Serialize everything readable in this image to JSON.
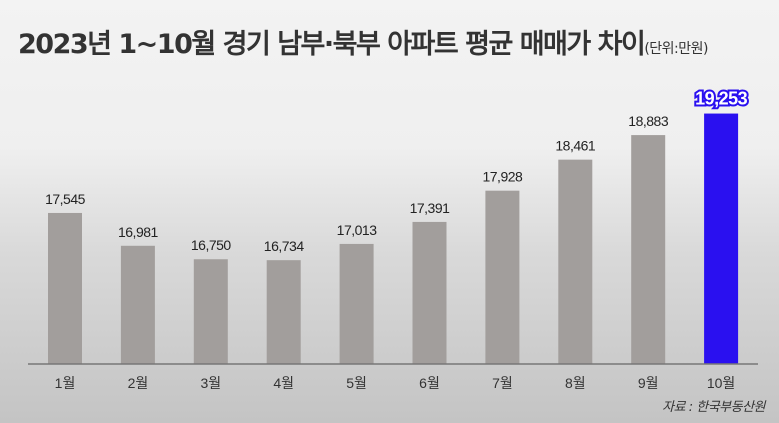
{
  "chart_data": {
    "type": "bar",
    "title": "2023년 1~10월 경기 남부·북부 아파트 평균 매매가 차이",
    "unit_note": "(단위:만원)",
    "categories": [
      "1월",
      "2월",
      "3월",
      "4월",
      "5월",
      "6월",
      "7월",
      "8월",
      "9월",
      "10월"
    ],
    "values": [
      17545,
      16981,
      16750,
      16734,
      17013,
      17391,
      17928,
      18461,
      18883,
      19253
    ],
    "value_labels": [
      "17,545",
      "16,981",
      "16,750",
      "16,734",
      "17,013",
      "17,391",
      "17,928",
      "18,461",
      "18,883",
      "19,253"
    ],
    "ylim": [
      14950,
      19400
    ],
    "grid": false,
    "highlight_index": 9,
    "colors": {
      "bar": "#a29e9c",
      "highlight": "#2a10f0",
      "highlight_label_outline": "#2a10f0"
    },
    "source": "자료 : 한국부동산원"
  }
}
